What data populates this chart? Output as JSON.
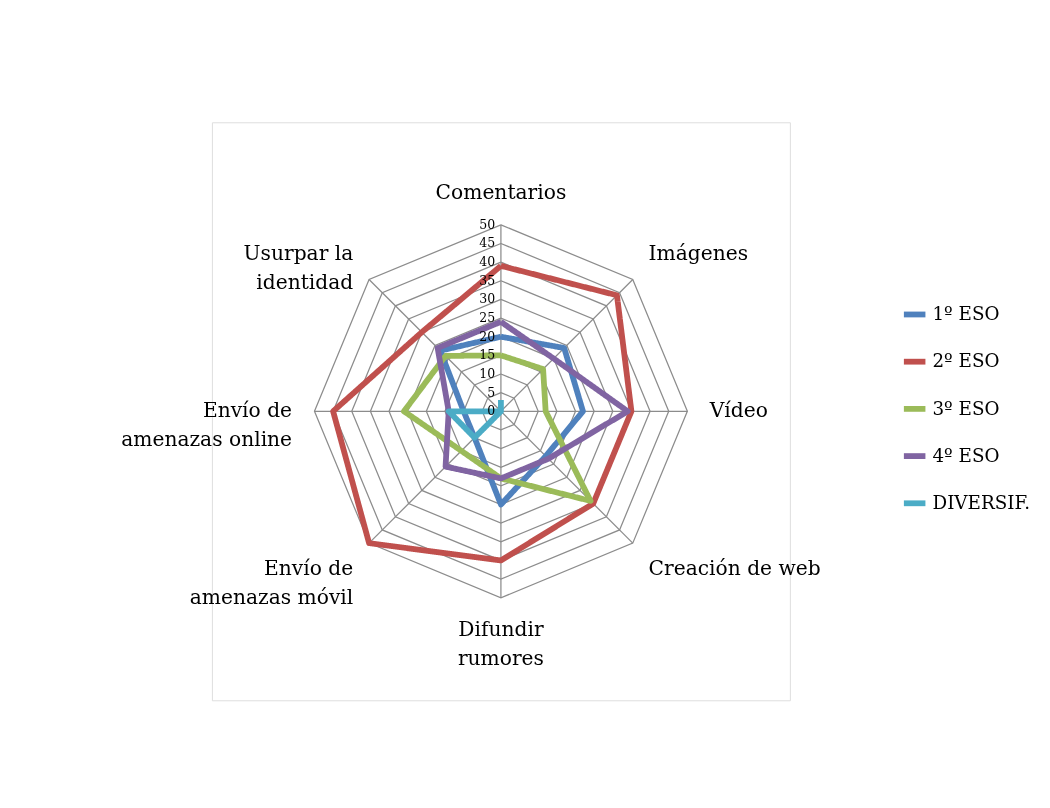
{
  "chart_data": {
    "type": "radar",
    "categories": [
      "Comentarios",
      "Imágenes",
      "Vídeo",
      "Creación de web",
      "Difundir rumores",
      "Envío de amenazas móvil",
      "Envío de amenazas online",
      "Usurpar la identidad"
    ],
    "ylim": [
      0,
      50
    ],
    "yticks": [
      0,
      5,
      10,
      15,
      20,
      25,
      30,
      35,
      40,
      45,
      50
    ],
    "grid": true,
    "legend": "right",
    "line_style": "solid",
    "marker": "none",
    "series": [
      {
        "name": "1º ESO",
        "color": "#4f81bd",
        "values": [
          20,
          24,
          22,
          17,
          25,
          10,
          10,
          23
        ]
      },
      {
        "name": "2º ESO",
        "color": "#c0504d",
        "values": [
          39,
          44,
          35,
          35,
          40,
          50,
          45,
          30
        ]
      },
      {
        "name": "3º ESO",
        "color": "#9bbb59",
        "values": [
          15,
          16,
          12,
          34,
          18,
          15,
          26,
          21
        ]
      },
      {
        "name": "4º ESO",
        "color": "#8064a2",
        "values": [
          24,
          20,
          34,
          18,
          18,
          21,
          14,
          24
        ]
      },
      {
        "name": "DIVERSIF.",
        "color": "#4bacc6",
        "values": [
          3,
          0,
          0,
          0,
          0,
          10,
          14,
          0
        ]
      }
    ]
  }
}
